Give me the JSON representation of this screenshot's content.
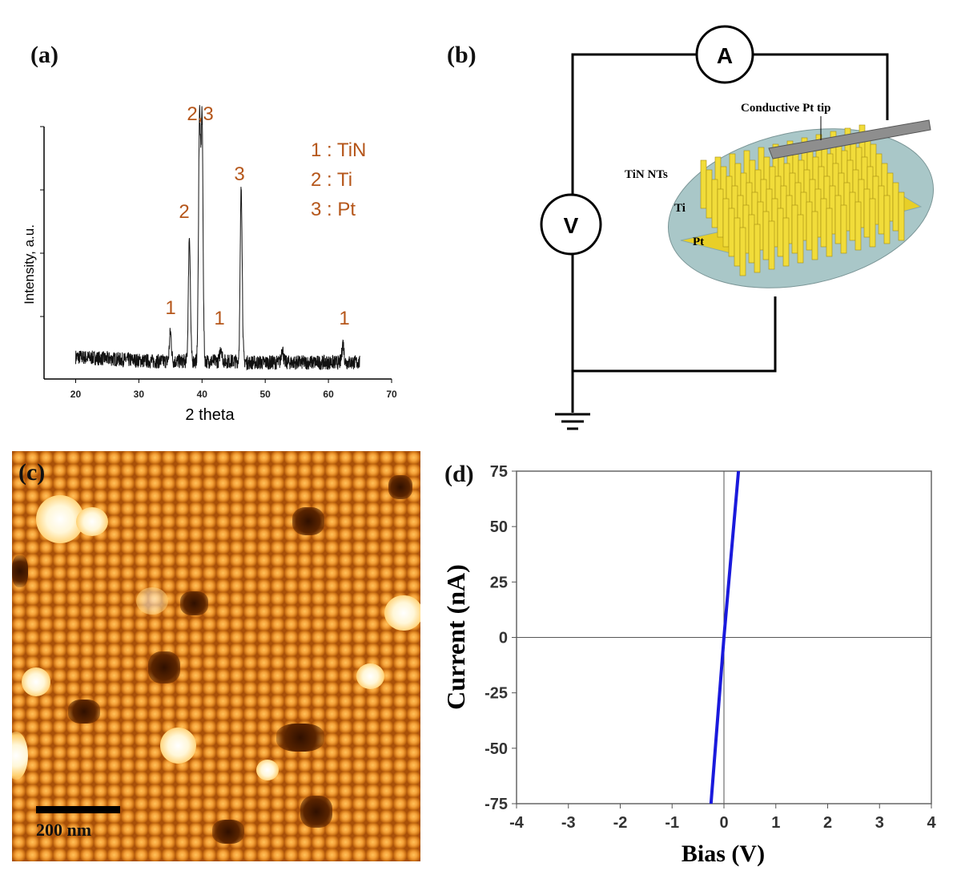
{
  "panels": {
    "a": "(a)",
    "b": "(b)",
    "c": "(c)",
    "d": "(d)"
  },
  "chart_data": [
    {
      "type": "line",
      "panel": "a",
      "xlabel": "2 theta",
      "ylabel": "Intensity, a.u.",
      "xlim": [
        15,
        70
      ],
      "xticks": [
        20,
        30,
        40,
        50,
        60,
        70
      ],
      "grid": false,
      "x_range_data": [
        20,
        65
      ],
      "peaks": [
        {
          "x": 35,
          "height": 0.12,
          "label": "1"
        },
        {
          "x": 38,
          "height": 0.52,
          "label": "2"
        },
        {
          "x": 39.6,
          "height": 1.0,
          "label": "2,3"
        },
        {
          "x": 40.0,
          "height": 1.0,
          "label": ""
        },
        {
          "x": 43,
          "height": 0.06,
          "label": "1"
        },
        {
          "x": 46.2,
          "height": 0.72,
          "label": "3"
        },
        {
          "x": 52.7,
          "height": 0.06,
          "label": ""
        },
        {
          "x": 62.3,
          "height": 0.08,
          "label": "1"
        }
      ],
      "legend": [
        "1 : TiN",
        "2 : Ti",
        "3 : Pt"
      ],
      "annotation_color": "#b5561a",
      "line_color": "#111111"
    },
    {
      "type": "line",
      "panel": "d",
      "xlabel": "Bias (V)",
      "ylabel": "Current (nA)",
      "xlim": [
        -4,
        4
      ],
      "ylim": [
        -75,
        75
      ],
      "xticks": [
        "-4",
        "-3",
        "-2",
        "-1",
        "0",
        "1",
        "2",
        "3",
        "4"
      ],
      "yticks": [
        "-75",
        "-50",
        "-25",
        "0",
        "25",
        "50",
        "75"
      ],
      "series": [
        {
          "x": [
            -0.25,
            0,
            0.28
          ],
          "y": [
            -75,
            0,
            75
          ],
          "color": "#1a1adc"
        }
      ]
    }
  ],
  "diagram": {
    "ammeter": "A",
    "voltmeter": "V",
    "tip_label": "Conductive Pt tip",
    "ntube_label": "TiN NTs",
    "ti_label": "Ti",
    "pt_label": "Pt"
  },
  "afm": {
    "scale_bar": "200 nm"
  }
}
